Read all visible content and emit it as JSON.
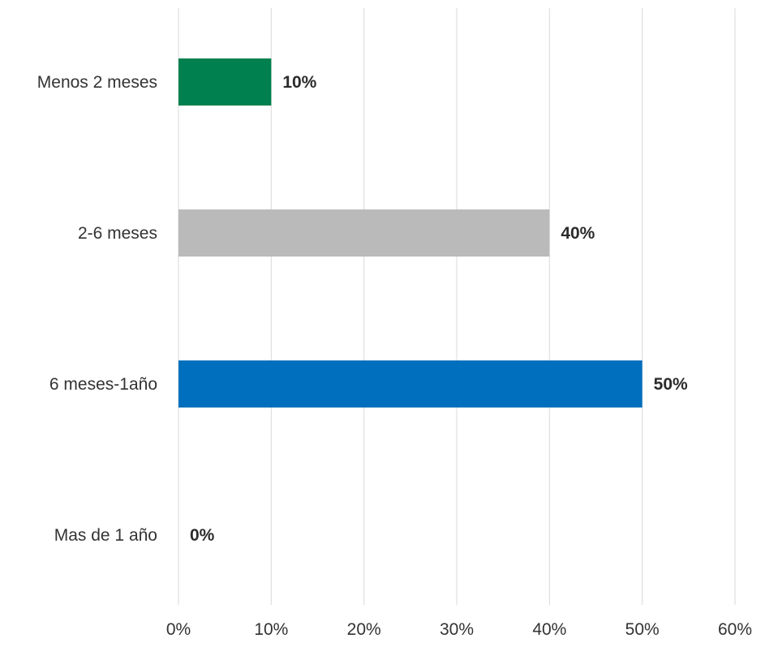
{
  "chart_data": {
    "type": "bar",
    "orientation": "horizontal",
    "categories": [
      "Menos 2 meses",
      "2-6 meses",
      "6 meses-1año",
      "Mas de 1 año"
    ],
    "values": [
      10,
      40,
      50,
      0
    ],
    "data_labels": [
      "10%",
      "40%",
      "50%",
      "0%"
    ],
    "colors": [
      "#00804f",
      "#bababa",
      "#006fbd",
      "#006fbd"
    ],
    "x_ticks": [
      "0%",
      "10%",
      "20%",
      "30%",
      "40%",
      "50%",
      "60%"
    ],
    "xlim": [
      0,
      60
    ],
    "grid": true,
    "title": "",
    "xlabel": "",
    "ylabel": ""
  }
}
